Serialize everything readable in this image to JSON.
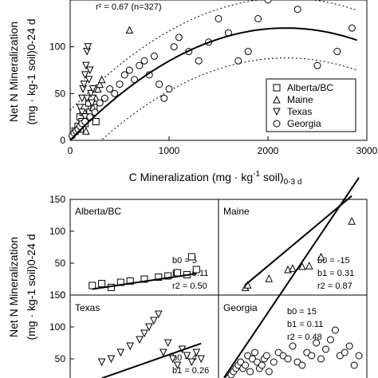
{
  "top": {
    "r2_text": "r² = 0.67  (n=327)",
    "xlabel_main": "C Mineralization (mg · kg",
    "xlabel_sup": "-1",
    "xlabel_tail": " soil)",
    "xlabel_sub": "0-3 d",
    "ylabel_line1": "Net N Mineralization",
    "ylabel_line2": "(mg · kg-1 soil)0-24 d",
    "legend": [
      "Alberta/BC",
      "Maine",
      "Texas",
      "Georgia"
    ]
  },
  "bottom": {
    "ylabel_line1": "Net N Mineralization",
    "ylabel_line2": "(mg · kg-1 soil)0-24 d",
    "panels": [
      {
        "name": "Alberta/BC",
        "b0": "b0 = 5",
        "b1": "b1 = 0.11",
        "r2": "r2 = 0.50"
      },
      {
        "name": "Maine",
        "b0": "b0 = -15",
        "b1": "b1 = 0.31",
        "r2": "r2 = 0.87"
      },
      {
        "name": "Texas",
        "b0": "b0 = 4",
        "b1": "b1 = 0.26"
      },
      {
        "name": "Georgia",
        "b0": "b0 = 15",
        "b1": "b1 = 0.11",
        "r2": "r2 = 0.48"
      }
    ]
  },
  "chart_data": [
    {
      "type": "scatter",
      "title": "",
      "xlabel": "C Mineralization (mg · kg-1 soil)0-3 d",
      "ylabel": "Net N Mineralization (mg · kg-1 soil)0-24 d",
      "xlim": [
        0,
        3000
      ],
      "ylim": [
        0,
        150
      ],
      "xticks": [
        0,
        1000,
        2000,
        3000
      ],
      "yticks": [
        0,
        50,
        100
      ],
      "legend_position": "lower-right",
      "annotation": "r² = 0.67  (n=327)",
      "fit": {
        "type": "quadratic",
        "b0": 0,
        "b1": 0.11,
        "b2": -2.52e-05
      },
      "prediction_band": {
        "upper_offset": 32,
        "lower_offset": -32
      },
      "series": [
        {
          "name": "Alberta/BC",
          "marker": "square",
          "x": [
            50,
            80,
            100,
            120,
            130,
            150,
            170,
            190,
            200,
            220,
            240,
            260,
            100,
            150
          ],
          "y": [
            10,
            15,
            25,
            20,
            30,
            35,
            25,
            40,
            30,
            45,
            35,
            20,
            12,
            18
          ]
        },
        {
          "name": "Maine",
          "marker": "triangle",
          "x": [
            160,
            200,
            230,
            260,
            280,
            300,
            320,
            600
          ],
          "y": [
            10,
            25,
            35,
            45,
            55,
            60,
            65,
            118
          ]
        },
        {
          "name": "Texas",
          "marker": "triangle-down",
          "x": [
            100,
            120,
            130,
            140,
            150,
            160,
            170,
            180,
            190,
            200,
            210,
            220,
            230,
            120,
            150,
            170
          ],
          "y": [
            35,
            45,
            55,
            60,
            70,
            80,
            95,
            100,
            65,
            75,
            50,
            40,
            55,
            30,
            25,
            45
          ]
        },
        {
          "name": "Georgia",
          "marker": "circle",
          "x": [
            20,
            40,
            60,
            80,
            100,
            120,
            150,
            200,
            250,
            300,
            350,
            400,
            450,
            500,
            550,
            600,
            650,
            700,
            750,
            800,
            850,
            900,
            950,
            1000,
            1050,
            1100,
            1200,
            1300,
            1400,
            1500,
            1600,
            1700,
            1800,
            1900,
            2000,
            2300,
            2500,
            2700,
            2850
          ],
          "y": [
            5,
            8,
            10,
            12,
            15,
            18,
            20,
            25,
            30,
            40,
            45,
            55,
            50,
            60,
            70,
            75,
            65,
            80,
            85,
            70,
            90,
            60,
            45,
            55,
            100,
            110,
            95,
            85,
            105,
            130,
            115,
            85,
            95,
            130,
            150,
            140,
            80,
            95,
            120
          ]
        }
      ]
    },
    {
      "type": "scatter",
      "panel": "Alberta/BC",
      "xlim": [
        0,
        300
      ],
      "ylim": [
        0,
        150
      ],
      "yticks": [
        0,
        50,
        100,
        150
      ],
      "fit": {
        "b0": 5,
        "b1": 0.11
      },
      "series": [
        {
          "name": "Alberta/BC",
          "marker": "square",
          "x": [
            40,
            60,
            80,
            100,
            120,
            150,
            180,
            200,
            220,
            240,
            250,
            260
          ],
          "y": [
            15,
            18,
            12,
            20,
            22,
            25,
            28,
            30,
            35,
            32,
            60,
            40
          ]
        }
      ]
    },
    {
      "type": "scatter",
      "panel": "Maine",
      "xlim": [
        0,
        600
      ],
      "ylim": [
        0,
        150
      ],
      "fit": {
        "b0": -15,
        "b1": 0.31
      },
      "series": [
        {
          "name": "Maine",
          "marker": "triangle",
          "x": [
            100,
            110,
            200,
            280,
            300,
            340,
            370,
            420,
            550
          ],
          "y": [
            12,
            16,
            26,
            40,
            42,
            45,
            46,
            60,
            116
          ]
        }
      ]
    },
    {
      "type": "scatter",
      "panel": "Texas",
      "xlim": [
        0,
        300
      ],
      "ylim": [
        0,
        150
      ],
      "yticks": [
        50,
        100,
        150
      ],
      "fit": {
        "b0": 4,
        "b1": 0.26
      },
      "series": [
        {
          "name": "Texas",
          "marker": "triangle-down",
          "x": [
            60,
            80,
            100,
            120,
            140,
            150,
            160,
            170,
            180,
            190,
            200,
            210,
            220,
            230,
            240,
            250,
            260,
            270
          ],
          "y": [
            45,
            50,
            60,
            70,
            80,
            90,
            100,
            110,
            120,
            60,
            75,
            50,
            40,
            65,
            55,
            45,
            60,
            50
          ]
        }
      ]
    },
    {
      "type": "scatter",
      "panel": "Georgia",
      "xlim": [
        0,
        3000
      ],
      "ylim": [
        0,
        150
      ],
      "fit": {
        "b0": 15,
        "b1": 0.11
      },
      "series": [
        {
          "name": "Georgia",
          "marker": "circle",
          "x": [
            50,
            100,
            150,
            200,
            250,
            300,
            350,
            400,
            450,
            500,
            550,
            600,
            650,
            700,
            750,
            800,
            850,
            900,
            950,
            1000,
            1100,
            1200,
            1300,
            1400,
            1500,
            1600,
            1700,
            1800,
            1900,
            2000,
            2100,
            2200,
            2300,
            2400,
            2500,
            2600,
            2700,
            2800,
            2900
          ],
          "y": [
            10,
            15,
            20,
            25,
            30,
            35,
            40,
            45,
            35,
            40,
            55,
            30,
            50,
            60,
            45,
            35,
            40,
            50,
            55,
            30,
            45,
            60,
            55,
            50,
            70,
            45,
            40,
            60,
            55,
            75,
            50,
            65,
            80,
            95,
            55,
            60,
            70,
            40,
            55
          ]
        }
      ]
    }
  ]
}
